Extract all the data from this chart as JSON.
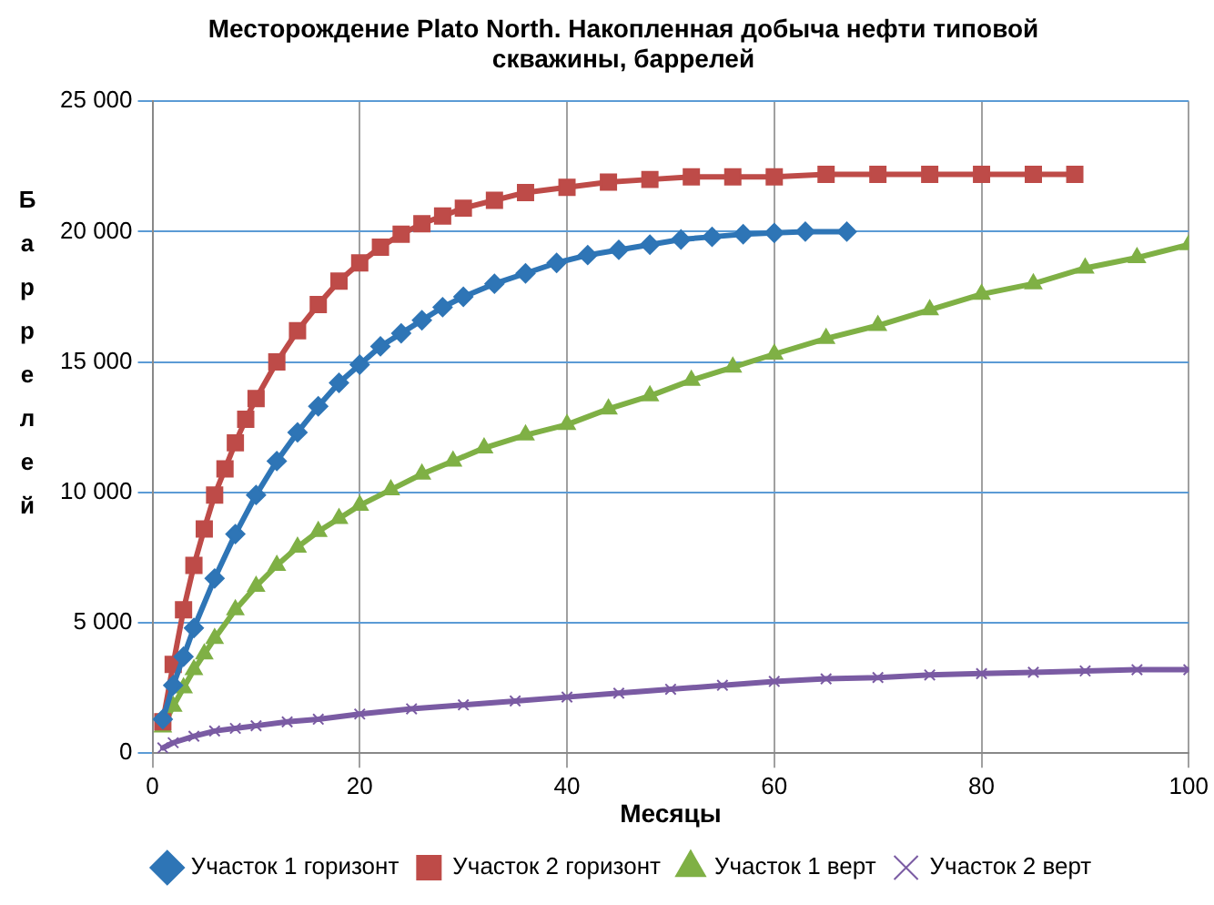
{
  "chart_data": {
    "type": "line",
    "title": "Месторождение Plato North. Накопленная добыча нефти типовой скважины, баррелей",
    "xlabel": "Месяцы",
    "ylabel": "Баррелей",
    "xlim": [
      0,
      100
    ],
    "xticks": [
      0,
      20,
      40,
      60,
      80,
      100
    ],
    "ylim": [
      0,
      25000
    ],
    "yticks": [
      {
        "value": 0,
        "label": "0"
      },
      {
        "value": 5000,
        "label": "5 000"
      },
      {
        "value": 10000,
        "label": "10 000"
      },
      {
        "value": 15000,
        "label": "15 000"
      },
      {
        "value": 20000,
        "label": "20 000"
      },
      {
        "value": 25000,
        "label": "25 000"
      }
    ],
    "grid": true,
    "legend": "bottom",
    "line_style": "solid",
    "series": [
      {
        "name": "Участок 1 горизонт",
        "color": "#2e75b6",
        "marker": "diamond",
        "x": [
          1,
          2,
          3,
          4,
          6,
          8,
          10,
          12,
          14,
          16,
          18,
          20,
          22,
          24,
          26,
          28,
          30,
          33,
          36,
          39,
          42,
          45,
          48,
          51,
          54,
          57,
          60,
          63,
          67
        ],
        "values": [
          1300,
          2600,
          3700,
          4800,
          6700,
          8400,
          9900,
          11200,
          12300,
          13300,
          14200,
          14900,
          15600,
          16100,
          16600,
          17100,
          17500,
          18000,
          18400,
          18800,
          19100,
          19300,
          19500,
          19700,
          19800,
          19900,
          19950,
          20000,
          20000
        ]
      },
      {
        "name": "Участок 2 горизонт",
        "color": "#be4b48",
        "marker": "square",
        "x": [
          1,
          2,
          3,
          4,
          5,
          6,
          7,
          8,
          9,
          10,
          12,
          14,
          16,
          18,
          20,
          22,
          24,
          26,
          28,
          30,
          33,
          36,
          40,
          44,
          48,
          52,
          56,
          60,
          65,
          70,
          75,
          80,
          85,
          89
        ],
        "values": [
          1200,
          3400,
          5500,
          7200,
          8600,
          9900,
          10900,
          11900,
          12800,
          13600,
          15000,
          16200,
          17200,
          18100,
          18800,
          19400,
          19900,
          20300,
          20600,
          20900,
          21200,
          21500,
          21700,
          21900,
          22000,
          22100,
          22100,
          22100,
          22200,
          22200,
          22200,
          22200,
          22200,
          22200
        ]
      },
      {
        "name": "Участок 1 верт",
        "color": "#7fb045",
        "marker": "triangle",
        "x": [
          1,
          2,
          3,
          4,
          5,
          6,
          8,
          10,
          12,
          14,
          16,
          18,
          20,
          23,
          26,
          29,
          32,
          36,
          40,
          44,
          48,
          52,
          56,
          60,
          65,
          70,
          75,
          80,
          85,
          90,
          95,
          100
        ],
        "values": [
          1000,
          1800,
          2500,
          3200,
          3800,
          4400,
          5500,
          6400,
          7200,
          7900,
          8500,
          9000,
          9500,
          10100,
          10700,
          11200,
          11700,
          12200,
          12600,
          13200,
          13700,
          14300,
          14800,
          15300,
          15900,
          16400,
          17000,
          17600,
          18000,
          18600,
          19000,
          19500
        ]
      },
      {
        "name": "Участок 2 верт",
        "color": "#7a5ba3",
        "marker": "cross",
        "x": [
          1,
          2,
          4,
          6,
          8,
          10,
          13,
          16,
          20,
          25,
          30,
          35,
          40,
          45,
          50,
          55,
          60,
          65,
          70,
          75,
          80,
          85,
          90,
          95,
          100
        ],
        "values": [
          200,
          400,
          650,
          850,
          950,
          1050,
          1200,
          1300,
          1500,
          1700,
          1850,
          2000,
          2150,
          2300,
          2450,
          2600,
          2750,
          2850,
          2900,
          3000,
          3050,
          3100,
          3150,
          3200,
          3200
        ]
      }
    ]
  }
}
